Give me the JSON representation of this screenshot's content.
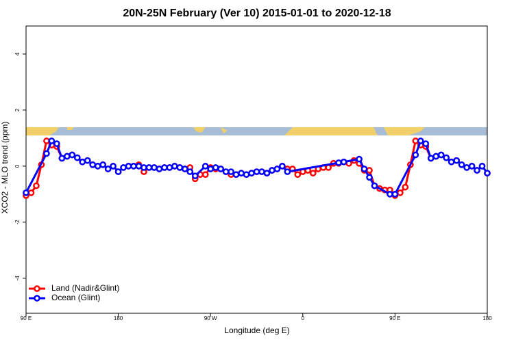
{
  "chart_data": {
    "type": "line",
    "title": "20N-25N February (Ver 10)   2015-01-01 to 2020-12-18",
    "xlabel": "Longitude (deg E)",
    "ylabel": "XCO2 - MLO trend (ppm)",
    "xlim": [
      90,
      540
    ],
    "xticks": [
      {
        "value": 90,
        "label": "90 E"
      },
      180,
      {
        "value": 270,
        "label": "90 W"
      },
      {
        "value": 360,
        "label": "0"
      },
      {
        "value": 450,
        "label": "90 E"
      },
      {
        "value": 540,
        "label": "180"
      }
    ],
    "ylim": [
      -5.25,
      5
    ],
    "yticks": [
      -4,
      -2,
      0,
      2,
      4
    ],
    "legend": "bottom-left",
    "series": [
      {
        "name": "Land (Nadir&Glint)",
        "color": "#ff0000",
        "x": [
          90,
          95,
          100,
          105,
          110,
          115,
          120,
          125,
          130,
          135,
          140,
          145,
          150,
          155,
          160,
          165,
          170,
          175,
          180,
          185,
          190,
          195,
          200,
          205,
          210,
          215,
          220,
          225,
          230,
          235,
          240,
          245,
          250,
          255,
          260,
          265,
          270,
          275,
          280,
          285,
          290,
          295,
          300,
          305,
          310,
          315,
          320,
          325,
          330,
          335,
          340,
          345,
          350,
          355,
          360,
          365,
          370,
          375,
          380,
          385,
          390,
          395,
          400,
          405,
          410,
          415,
          420,
          425,
          430,
          435,
          440,
          445,
          450,
          455,
          460,
          465,
          470,
          475,
          480,
          485,
          490,
          495,
          500,
          505,
          510,
          515,
          520,
          525,
          530,
          535,
          540
        ],
        "values": [
          -1.05,
          -0.95,
          -0.7,
          0.05,
          0.9,
          0.75,
          0.7,
          0.28,
          0.35,
          0.4,
          0.3,
          0.15,
          0.2,
          0.05,
          0.0,
          0.05,
          -0.1,
          0.0,
          -0.2,
          -0.05,
          0.0,
          0.0,
          0.05,
          -0.2,
          -0.05,
          -0.05,
          -0.1,
          -0.05,
          -0.05,
          0.0,
          -0.05,
          -0.1,
          -0.05,
          -0.45,
          -0.3,
          -0.3,
          -0.05,
          -0.1,
          -0.1,
          -0.2,
          -0.3,
          -0.3,
          -0.25,
          -0.3,
          -0.25,
          -0.2,
          -0.2,
          -0.25,
          -0.15,
          -0.1,
          0.0,
          -0.1,
          -0.1,
          -0.3,
          -0.2,
          -0.15,
          -0.25,
          -0.1,
          -0.05,
          -0.05,
          0.1,
          0.1,
          0.15,
          0.1,
          0.2,
          0.1,
          -0.15,
          -0.15,
          -0.7,
          -0.8,
          -0.85,
          -0.85,
          -1.05,
          -0.95,
          -0.75,
          0.05,
          0.9,
          0.75,
          0.7,
          0.28,
          0.35,
          0.4,
          0.3,
          0.15,
          0.2,
          0.05,
          -0.05,
          0.0,
          -0.15,
          0.0,
          -0.25
        ]
      },
      {
        "name": "Ocean (Glint)",
        "color": "#0000ff",
        "x": [
          90,
          110,
          115,
          120,
          125,
          130,
          135,
          140,
          145,
          150,
          155,
          160,
          165,
          170,
          175,
          180,
          185,
          190,
          195,
          200,
          205,
          210,
          215,
          220,
          225,
          230,
          235,
          240,
          245,
          250,
          255,
          265,
          270,
          275,
          280,
          285,
          290,
          295,
          300,
          305,
          310,
          315,
          320,
          325,
          330,
          335,
          340,
          345,
          395,
          400,
          415,
          420,
          425,
          430,
          445,
          450,
          470,
          475,
          480,
          485,
          490,
          495,
          500,
          505,
          510,
          515,
          520,
          525,
          530,
          535,
          540
        ],
        "values": [
          -0.95,
          0.45,
          0.9,
          0.8,
          0.28,
          0.35,
          0.4,
          0.3,
          0.15,
          0.2,
          0.05,
          0.0,
          0.05,
          -0.1,
          0.0,
          -0.2,
          -0.05,
          0.0,
          0.0,
          0.0,
          -0.05,
          -0.05,
          -0.05,
          -0.1,
          -0.05,
          -0.05,
          0.0,
          -0.05,
          -0.1,
          -0.2,
          -0.35,
          0.0,
          -0.1,
          -0.05,
          -0.1,
          -0.2,
          -0.2,
          -0.3,
          -0.25,
          -0.3,
          -0.25,
          -0.2,
          -0.2,
          -0.25,
          -0.15,
          -0.1,
          0.0,
          -0.2,
          0.12,
          0.15,
          0.25,
          -0.1,
          -0.4,
          -0.7,
          -1.0,
          -1.0,
          0.4,
          0.9,
          0.8,
          0.28,
          0.35,
          0.4,
          0.3,
          0.15,
          0.2,
          0.05,
          -0.05,
          0.0,
          -0.15,
          0.0,
          -0.25
        ]
      }
    ]
  }
}
